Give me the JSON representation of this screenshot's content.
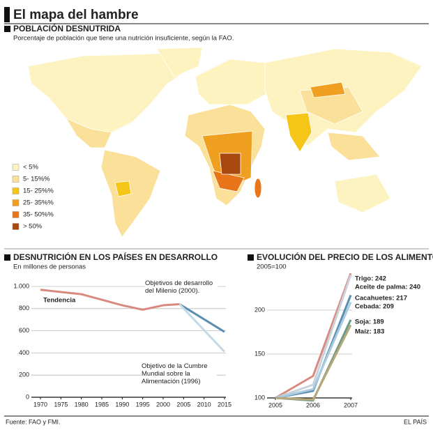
{
  "header": {
    "title": "El mapa del hambre"
  },
  "map": {
    "heading": "POBLACIÓN DESNUTRIDA",
    "subtitle": "Porcentaje de población que tiene una nutrición insuficiente, según la FAO.",
    "legend": [
      {
        "label": "< 5%",
        "color": "#fdf3c0"
      },
      {
        "label": "5- 15%%",
        "color": "#fbe09a"
      },
      {
        "label": "15- 25%%",
        "color": "#f5c518"
      },
      {
        "label": "25- 35%%",
        "color": "#f0a020"
      },
      {
        "label": "35- 50%%",
        "color": "#e8751a"
      },
      {
        "label": "> 50%",
        "color": "#a8480f"
      }
    ]
  },
  "chart_data": [
    {
      "type": "line",
      "title": "DESNUTRICIÓN EN LOS PAÍSES EN DESARROLLO",
      "subtitle": "En millones de personas",
      "xlim": [
        1970,
        2015
      ],
      "xticks": [
        1970,
        1975,
        1980,
        1985,
        1990,
        1995,
        2000,
        2005,
        2010,
        2015
      ],
      "ylim": [
        0,
        1000
      ],
      "yticks": [
        0,
        200,
        400,
        600,
        800,
        {
          "value": 1000,
          "label": "1.000"
        }
      ],
      "grid": true,
      "series": [
        {
          "name": "Tendencia",
          "color": "#d98a80",
          "x": [
            1970,
            1975,
            1980,
            1985,
            1990,
            1995,
            2000,
            2004
          ],
          "values": [
            970,
            950,
            930,
            880,
            830,
            790,
            830,
            840
          ]
        },
        {
          "name": "Objetivos de desarrollo del Milenio (2000).",
          "color": "#5b8fb0",
          "x": [
            2004,
            2015
          ],
          "values": [
            840,
            590
          ]
        },
        {
          "name": "Objetivo de la Cumbre Mundial sobre la Alimentación (1996)",
          "color": "#c5d8e6",
          "x": [
            2004,
            2015
          ],
          "values": [
            840,
            410
          ]
        }
      ]
    },
    {
      "type": "line",
      "title": "EVOLUCIÓN DEL PRECIO DE LOS ALIMENTOS",
      "subtitle": "2005=100",
      "xlim": [
        2005,
        2007
      ],
      "xticks": [
        2005,
        2006,
        2007
      ],
      "ylim": [
        100,
        250
      ],
      "yticks": [
        100,
        150,
        200
      ],
      "grid": true,
      "series": [
        {
          "name": "Trigo",
          "color": "#d98a80",
          "x": [
            2005,
            2006,
            2007
          ],
          "values": [
            100,
            125,
            242
          ],
          "value_labels": [
            null,
            null,
            "Trigo: 242"
          ]
        },
        {
          "name": "Aceite de palma",
          "color": "#c9d3dc",
          "x": [
            2005,
            2006,
            2007
          ],
          "values": [
            100,
            115,
            240
          ],
          "value_labels": [
            null,
            null,
            "Aceite de palma: 240"
          ]
        },
        {
          "name": "Cacahuetes",
          "color": "#5b8fb0",
          "x": [
            2005,
            2006,
            2007
          ],
          "values": [
            100,
            108,
            217
          ],
          "value_labels": [
            null,
            null,
            "Cacahuetes: 217"
          ]
        },
        {
          "name": "Cebada",
          "color": "#a9cbe0",
          "x": [
            2005,
            2006,
            2007
          ],
          "values": [
            100,
            110,
            209
          ],
          "value_labels": [
            null,
            null,
            "Cebada: 209"
          ]
        },
        {
          "name": "Soja",
          "color": "#6a9a8a",
          "x": [
            2005,
            2006,
            2007
          ],
          "values": [
            100,
            97,
            189
          ],
          "value_labels": [
            null,
            null,
            "Soja: 189"
          ]
        },
        {
          "name": "Maíz",
          "color": "#b8a878",
          "x": [
            2005,
            2006,
            2007
          ],
          "values": [
            100,
            98,
            183
          ],
          "value_labels": [
            null,
            null,
            "Maíz: 183"
          ]
        }
      ]
    }
  ],
  "footer": {
    "source": "Fuente: FAO y FMI.",
    "brand": "EL PAÍS"
  }
}
